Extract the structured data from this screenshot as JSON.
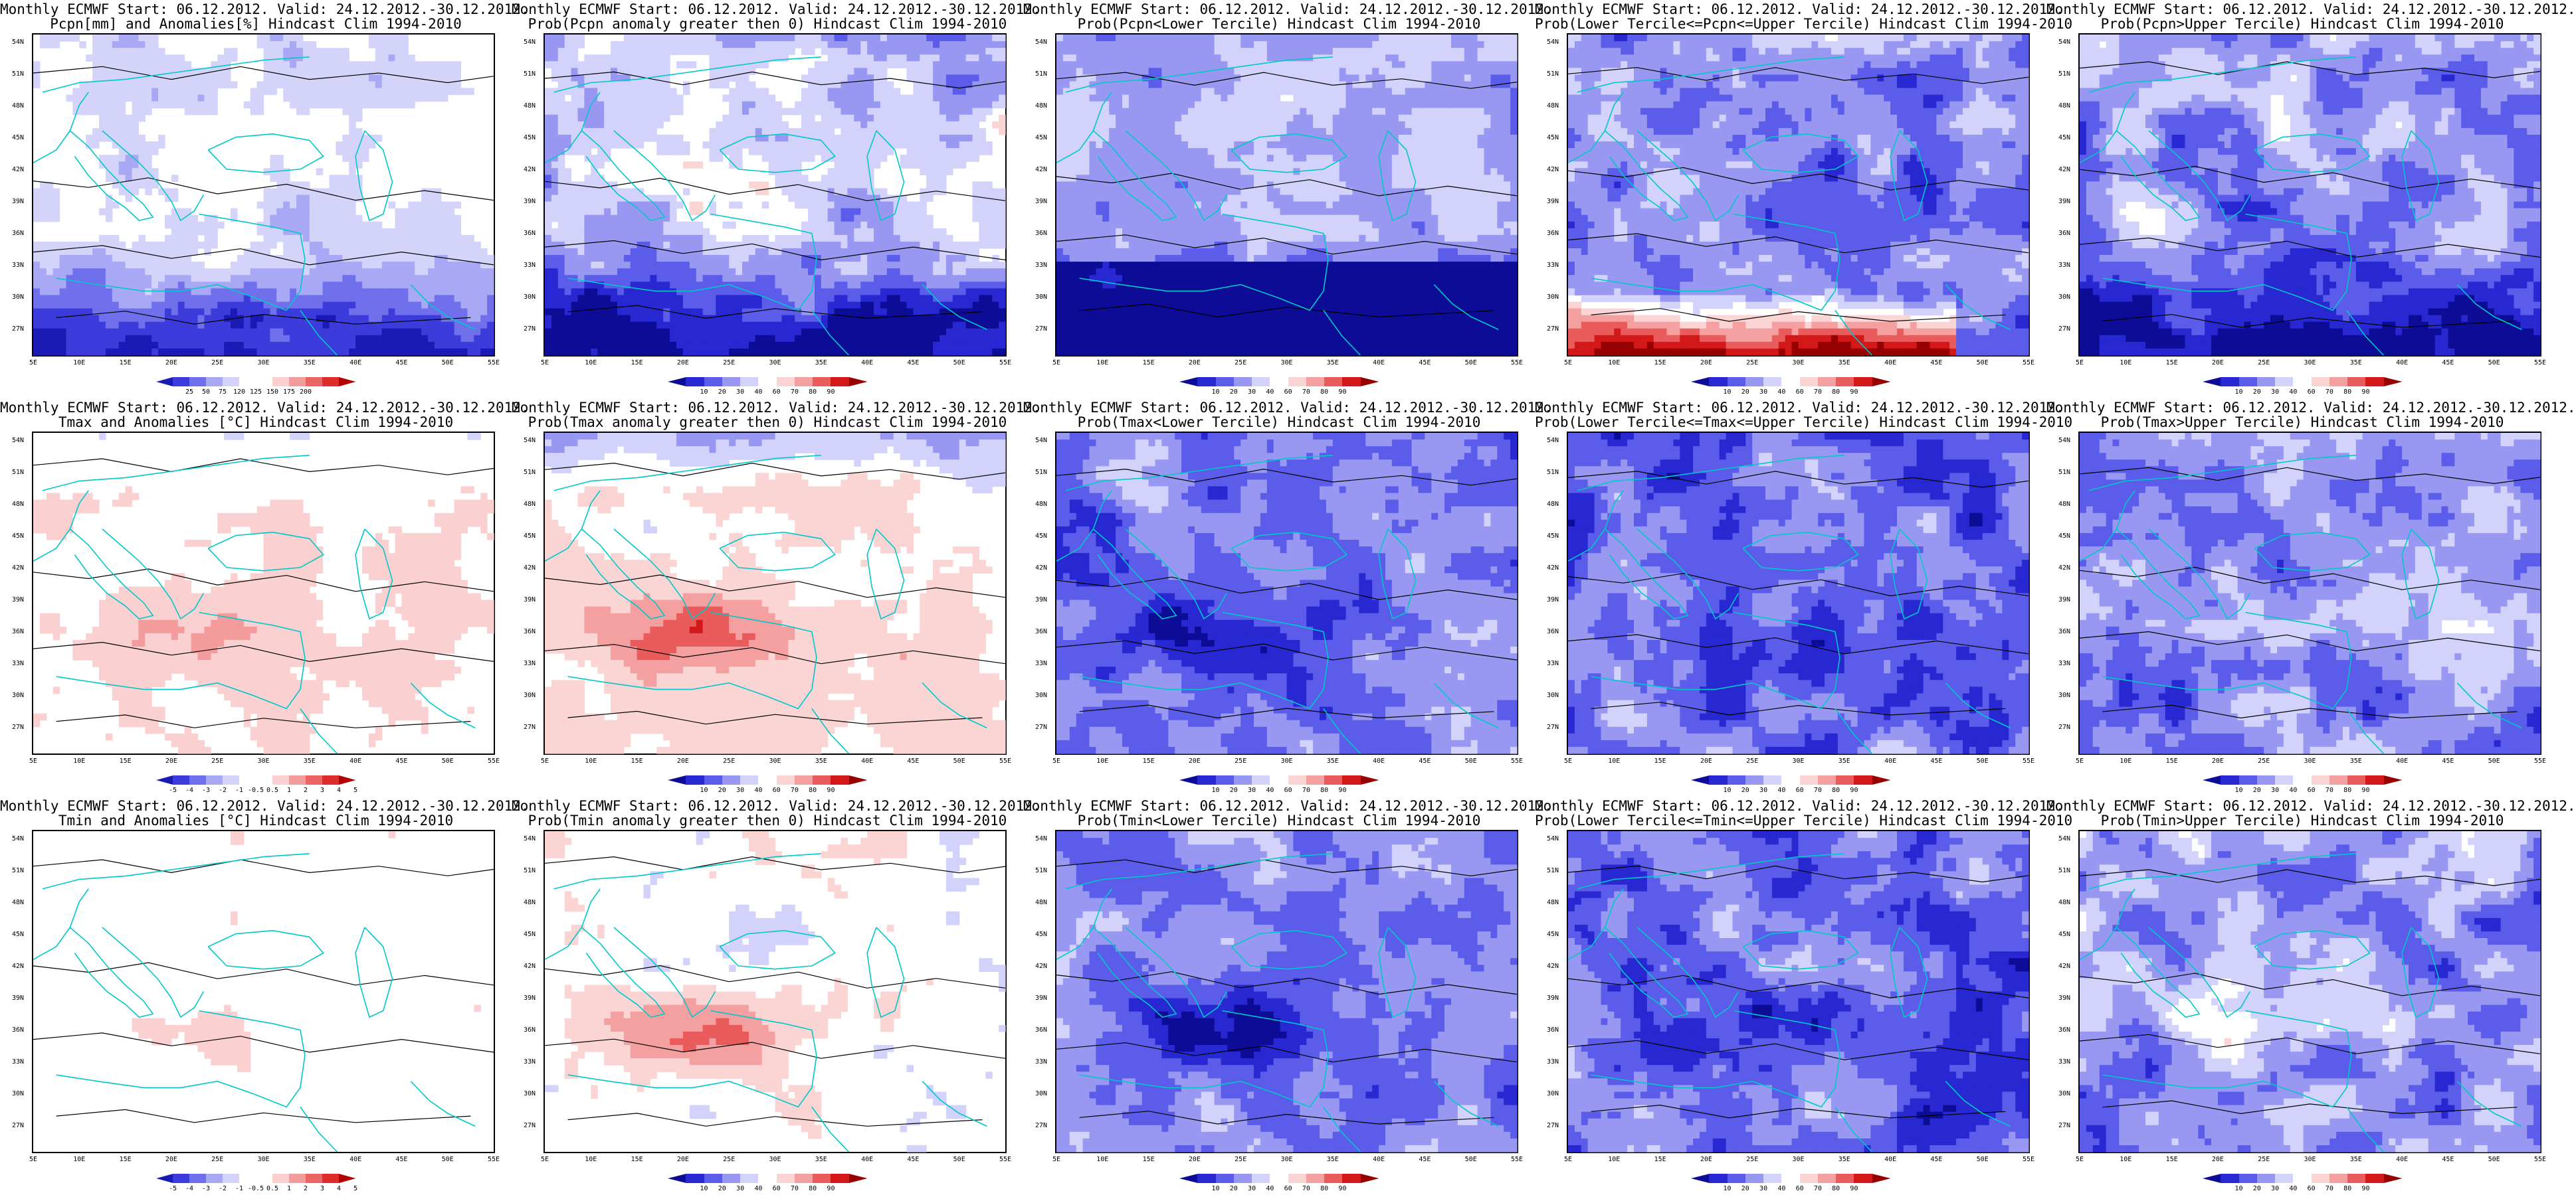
{
  "palettes": {
    "anomaly": [
      "#1a1ab4",
      "#3c3cdc",
      "#7070ec",
      "#a8a8f4",
      "#d4d4fb",
      "#ffffff",
      "#ffffff",
      "#fbd0d0",
      "#f49c9c",
      "#ec6464",
      "#dc2c2c",
      "#b40000"
    ],
    "prob": [
      "#0c0c96",
      "#2828d2",
      "#5c5cea",
      "#9898f2",
      "#d2d2fa",
      "#ffffff",
      "#fbd4d4",
      "#f4a0a0",
      "#ea5c5c",
      "#d21818",
      "#960000"
    ]
  },
  "colors": {
    "coastline": "#00c8c8",
    "contour": "#000000",
    "frame": "#000000"
  },
  "axes": {
    "lat_ticks": [
      "54N",
      "51N",
      "48N",
      "45N",
      "42N",
      "39N",
      "36N",
      "33N",
      "30N",
      "27N"
    ],
    "lon_ticks": [
      "5E",
      "10E",
      "15E",
      "20E",
      "25E",
      "30E",
      "35E",
      "40E",
      "45E",
      "50E",
      "55E"
    ],
    "lat_range": [
      25,
      55
    ],
    "lon_range": [
      5,
      55
    ]
  },
  "colorbar_ticks": {
    "pcpn_anomaly": [
      "25",
      "50",
      "75",
      "120",
      "125",
      "150",
      "175",
      "200"
    ],
    "temp_anomaly": [
      "-5",
      "-4",
      "-3",
      "-2",
      "-1",
      "-0.5",
      "0.5",
      "1",
      "2",
      "3",
      "4",
      "5"
    ],
    "prob": [
      "10",
      "20",
      "30",
      "40",
      "60",
      "70",
      "80",
      "90"
    ]
  },
  "panels": [
    {
      "title_line1": "Monthly ECMWF Start: 06.12.2012. Valid: 24.12.2012.-30.12.2012.",
      "title_line2": "Pcpn[mm] and Anomalies[%] Hindcast Clim 1994-2010",
      "palette": "anomaly",
      "ticks": "pcpn_anomaly",
      "field": "pcpn_anom"
    },
    {
      "title_line1": "Monthly ECMWF Start: 06.12.2012. Valid: 24.12.2012.-30.12.2012.",
      "title_line2": "Prob(Pcpn anomaly greater then 0) Hindcast Clim 1994-2010",
      "palette": "prob",
      "ticks": "prob",
      "field": "pcpn_gt0"
    },
    {
      "title_line1": "Monthly ECMWF Start: 06.12.2012. Valid: 24.12.2012.-30.12.2012.",
      "title_line2": "Prob(Pcpn<Lower Tercile) Hindcast Clim 1994-2010",
      "palette": "prob",
      "ticks": "prob",
      "field": "pcpn_lower"
    },
    {
      "title_line1": "Monthly ECMWF Start: 06.12.2012. Valid: 24.12.2012.-30.12.2012.",
      "title_line2": "Prob(Lower Tercile<=Pcpn<=Upper Tercile) Hindcast Clim 1994-2010",
      "palette": "prob",
      "ticks": "prob",
      "field": "pcpn_middle"
    },
    {
      "title_line1": "Monthly ECMWF Start: 06.12.2012. Valid: 24.12.2012.-30.12.2012.",
      "title_line2": "Prob(Pcpn>Upper Tercile) Hindcast Clim 1994-2010",
      "palette": "prob",
      "ticks": "prob",
      "field": "pcpn_upper"
    },
    {
      "title_line1": "Monthly ECMWF Start: 06.12.2012. Valid: 24.12.2012.-30.12.2012.",
      "title_line2": "Tmax and Anomalies [°C] Hindcast Clim 1994-2010",
      "palette": "anomaly",
      "ticks": "temp_anomaly",
      "field": "tmax_anom"
    },
    {
      "title_line1": "Monthly ECMWF Start: 06.12.2012. Valid: 24.12.2012.-30.12.2012.",
      "title_line2": "Prob(Tmax anomaly greater then 0) Hindcast Clim 1994-2010",
      "palette": "prob",
      "ticks": "prob",
      "field": "tmax_gt0"
    },
    {
      "title_line1": "Monthly ECMWF Start: 06.12.2012. Valid: 24.12.2012.-30.12.2012.",
      "title_line2": "Prob(Tmax<Lower Tercile) Hindcast Clim 1994-2010",
      "palette": "prob",
      "ticks": "prob",
      "field": "tmax_lower"
    },
    {
      "title_line1": "Monthly ECMWF Start: 06.12.2012. Valid: 24.12.2012.-30.12.2012.",
      "title_line2": "Prob(Lower Tercile<=Tmax<=Upper Tercile) Hindcast Clim 1994-2010",
      "palette": "prob",
      "ticks": "prob",
      "field": "tmax_middle"
    },
    {
      "title_line1": "Monthly ECMWF Start: 06.12.2012. Valid: 24.12.2012.-30.12.2012.",
      "title_line2": "Prob(Tmax>Upper Tercile) Hindcast Clim 1994-2010",
      "palette": "prob",
      "ticks": "prob",
      "field": "tmax_upper"
    },
    {
      "title_line1": "Monthly ECMWF Start: 06.12.2012. Valid: 24.12.2012.-30.12.2012.",
      "title_line2": "Tmin and Anomalies [°C] Hindcast Clim 1994-2010",
      "palette": "anomaly",
      "ticks": "temp_anomaly",
      "field": "tmin_anom"
    },
    {
      "title_line1": "Monthly ECMWF Start: 06.12.2012. Valid: 24.12.2012.-30.12.2012.",
      "title_line2": "Prob(Tmin anomaly greater then 0) Hindcast Clim 1994-2010",
      "palette": "prob",
      "ticks": "prob",
      "field": "tmin_gt0"
    },
    {
      "title_line1": "Monthly ECMWF Start: 06.12.2012. Valid: 24.12.2012.-30.12.2012.",
      "title_line2": "Prob(Tmin<Lower Tercile) Hindcast Clim 1994-2010",
      "palette": "prob",
      "ticks": "prob",
      "field": "tmin_lower"
    },
    {
      "title_line1": "Monthly ECMWF Start: 06.12.2012. Valid: 24.12.2012.-30.12.2012.",
      "title_line2": "Prob(Lower Tercile<=Tmin<=Upper Tercile) Hindcast Clim 1994-2010",
      "palette": "prob",
      "ticks": "prob",
      "field": "tmin_middle"
    },
    {
      "title_line1": "Monthly ECMWF Start: 06.12.2012. Valid: 24.12.2012.-30.12.2012.",
      "title_line2": "Prob(Tmin>Upper Tercile) Hindcast Clim 1994-2010",
      "palette": "prob",
      "ticks": "prob",
      "field": "tmin_upper"
    }
  ]
}
